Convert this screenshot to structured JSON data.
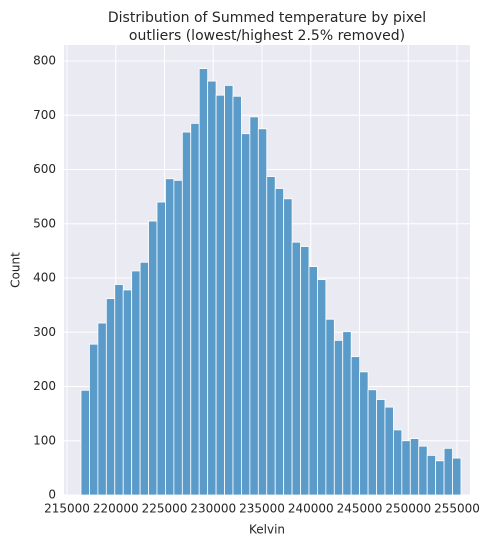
{
  "chart_data": {
    "type": "histogram",
    "title": [
      "Distribution of Summed temperature by pixel",
      " outliers (lowest/highest 2.5% removed)"
    ],
    "x_label": "Kelvin",
    "y_label": "Count",
    "bins": [
      216436,
      217302,
      218168,
      219034,
      219900,
      220766,
      221632,
      222498,
      223364,
      224230,
      225096,
      225962,
      226828,
      227694,
      228560,
      229426,
      230292,
      231158,
      232024,
      232890,
      233756,
      234622,
      235488,
      236354,
      237220,
      238086,
      238952,
      239818,
      240684,
      241550,
      242416,
      243282,
      244148,
      245014,
      245880,
      246746,
      247612,
      248478,
      249344,
      250210,
      251076,
      251942,
      252808,
      253674,
      254540,
      255406
    ],
    "values": [
      193,
      278,
      317,
      362,
      388,
      378,
      413,
      429,
      505,
      540,
      583,
      580,
      669,
      685,
      786,
      763,
      737,
      755,
      735,
      666,
      697,
      675,
      587,
      565,
      546,
      466,
      458,
      421,
      397,
      324,
      285,
      301,
      255,
      227,
      194,
      176,
      162,
      120,
      100,
      104,
      90,
      73,
      63,
      86,
      68
    ],
    "color": "#5b9bc9",
    "xlim": [
      214692,
      256333
    ],
    "ylim": [
      0,
      829.5
    ],
    "xticks": [
      215000,
      220000,
      225000,
      230000,
      235000,
      240000,
      245000,
      250000,
      255000
    ],
    "yticks": [
      0,
      100,
      200,
      300,
      400,
      500,
      600,
      700,
      800
    ],
    "grid": true
  }
}
